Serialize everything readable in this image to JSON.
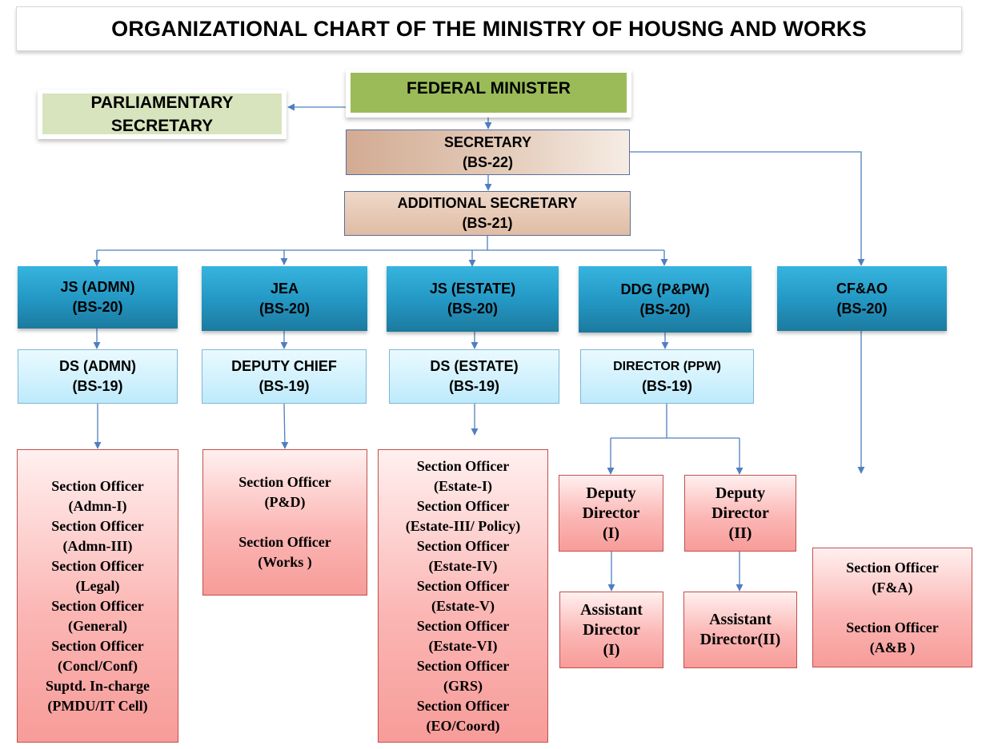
{
  "title": "ORGANIZATIONAL CHART OF THE MINISTRY OF HOUSNG AND WORKS",
  "federal_minister": "FEDERAL MINISTER",
  "parliamentary_secretary": [
    "PARLIAMENTARY",
    "SECRETARY"
  ],
  "secretary": [
    "SECRETARY",
    "(BS-22)"
  ],
  "additional_secretary": [
    "ADDITIONAL SECRETARY",
    "(BS-21)"
  ],
  "level20": [
    [
      "JS (ADMN)",
      "(BS-20)"
    ],
    [
      "JEA",
      "(BS-20)"
    ],
    [
      "JS (ESTATE)",
      "(BS-20)"
    ],
    [
      "DDG (P&PW)",
      "(BS-20)"
    ],
    [
      "CF&AO",
      "(BS-20)"
    ]
  ],
  "level19": [
    [
      "DS (ADMN)",
      "(BS-19)"
    ],
    [
      "DEPUTY CHIEF",
      "(BS-19)"
    ],
    [
      "DS (ESTATE)",
      "(BS-19)"
    ],
    [
      "DIRECTOR (PPW)",
      "(BS-19)"
    ]
  ],
  "admn_officers": [
    "Section Officer",
    "(Admn-I)",
    "Section Officer",
    "(Admn-III)",
    "Section Officer",
    "(Legal)",
    "Section Officer",
    "(General)",
    "Section Officer",
    "(Concl/Conf)",
    "Suptd. In-charge",
    "(PMDU/IT Cell)"
  ],
  "jea_officers": [
    "Section Officer",
    "(P&D)",
    "",
    "Section Officer",
    "(Works )"
  ],
  "estate_officers": [
    "Section Officer",
    "(Estate-I)",
    "Section Officer",
    "(Estate-III/ Policy)",
    "Section Officer",
    "(Estate-IV)",
    "Section Officer",
    "(Estate-V)",
    "Section Officer",
    "(Estate-VI)",
    "Section Officer",
    "(GRS)",
    "Section Officer",
    "(EO/Coord)"
  ],
  "deputy_director_1": [
    "Deputy",
    "Director",
    "(I)"
  ],
  "deputy_director_2": [
    "Deputy",
    "Director",
    "(II)"
  ],
  "assistant_director_1": [
    "Assistant",
    "Director",
    "(I)"
  ],
  "assistant_director_2": [
    "Assistant",
    "Director(II)"
  ],
  "cfao_officers": [
    "Section Officer",
    "(F&A)",
    "",
    "Section Officer",
    "(A&B )"
  ],
  "colors": {
    "minister": "#9bbb59",
    "parliamentary": "#d7e4bd",
    "level20": "#2396c2",
    "level19": "#bdeafb",
    "officers": "#fbb7b5",
    "connector": "#4f7fbf"
  }
}
